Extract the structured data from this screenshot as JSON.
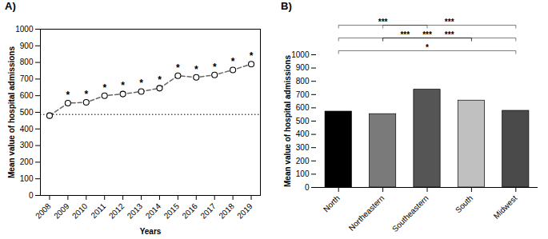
{
  "chart_data": [
    {
      "type": "line",
      "title": "A)",
      "xlabel": "Years",
      "ylabel": "Mean value of hospital admissions",
      "x": [
        2008,
        2009,
        2010,
        2011,
        2012,
        2013,
        2014,
        2015,
        2016,
        2017,
        2018,
        2019
      ],
      "values": [
        480,
        555,
        560,
        600,
        610,
        625,
        645,
        720,
        710,
        725,
        755,
        790
      ],
      "xlim": [
        2007.5,
        2019.5
      ],
      "xticks": [
        2008,
        2009,
        2010,
        2011,
        2012,
        2013,
        2014,
        2015,
        2016,
        2017,
        2018,
        2019
      ],
      "ylim": [
        0,
        1000
      ],
      "yticks": [
        0,
        100,
        200,
        300,
        400,
        500,
        600,
        700,
        800,
        900,
        1000
      ],
      "line_style": "dashed",
      "marker": "o",
      "hline": {
        "y": 487,
        "line_style": "dotted"
      },
      "annotations": [
        {
          "x": 2009,
          "y": 555,
          "text": "*"
        },
        {
          "x": 2010,
          "y": 560,
          "text": "*"
        },
        {
          "x": 2011,
          "y": 600,
          "text": "*"
        },
        {
          "x": 2012,
          "y": 610,
          "text": "*"
        },
        {
          "x": 2013,
          "y": 625,
          "text": "*"
        },
        {
          "x": 2014,
          "y": 645,
          "text": "*"
        },
        {
          "x": 2015,
          "y": 720,
          "text": "*"
        },
        {
          "x": 2016,
          "y": 710,
          "text": "*"
        },
        {
          "x": 2017,
          "y": 725,
          "text": "*"
        },
        {
          "x": 2018,
          "y": 755,
          "text": "*"
        },
        {
          "x": 2019,
          "y": 790,
          "text": "*"
        }
      ]
    },
    {
      "type": "bar",
      "title": "B)",
      "ylabel": "Mean value of hospital admissions",
      "categories": [
        "North",
        "Northeastern",
        "Southeastern",
        "South",
        "Midwest"
      ],
      "values": [
        572,
        553,
        737,
        655,
        578
      ],
      "colors": [
        "#000000",
        "#7a7a7a",
        "#555555",
        "#c0c0c0",
        "#4a4a4a"
      ],
      "ylim": [
        0,
        1000
      ],
      "yticks": [
        0,
        100,
        200,
        300,
        400,
        500,
        600,
        700,
        800,
        900,
        1000
      ],
      "brackets": [
        [
          {
            "from": "North",
            "to": "Southeastern",
            "text": "***"
          },
          {
            "from": "Northeastern",
            "to": "Midwest",
            "text": "***"
          }
        ],
        [
          {
            "from": "North",
            "to": "South",
            "text": "***"
          },
          {
            "from": "Northeastern",
            "to": "South",
            "text": "***"
          },
          {
            "from": "Northeastern",
            "to": "Midwest",
            "text": "***"
          }
        ],
        [
          {
            "from": "North",
            "to": "Midwest",
            "text": "*"
          }
        ]
      ]
    }
  ]
}
